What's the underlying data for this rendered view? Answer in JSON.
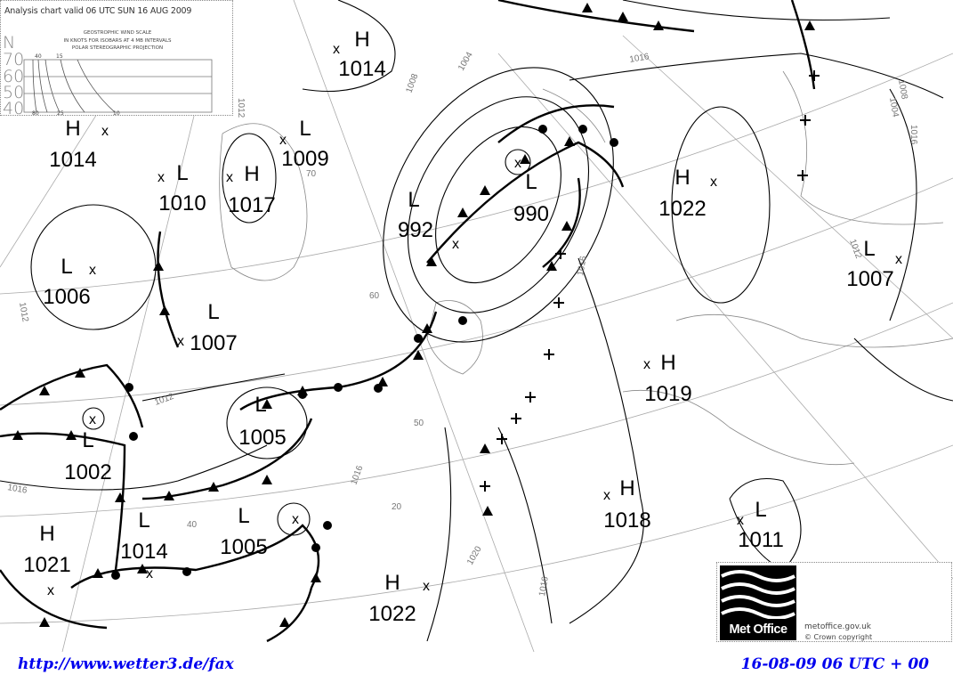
{
  "legend": {
    "title": "Analysis chart valid 06 UTC SUN 16 AUG 2009",
    "scale_title": "GEOSTROPHIC WIND SCALE",
    "scale_sub": "IN KNOTS FOR ISOBARS AT  4 MB INTERVALS",
    "projection": "POLAR STEREOGRAPHIC PROJECTION",
    "north": "N",
    "latitudes": [
      "70",
      "60",
      "50",
      "40"
    ],
    "top_speeds": [
      "40",
      "15"
    ],
    "bottom_speeds": [
      "80",
      "25",
      "10"
    ]
  },
  "pressure_centers": [
    {
      "type": "H",
      "value": "1014"
    },
    {
      "type": "H",
      "value": "1014"
    },
    {
      "type": "L",
      "value": "1010"
    },
    {
      "type": "H",
      "value": "1017"
    },
    {
      "type": "L",
      "value": "1009"
    },
    {
      "type": "L",
      "value": "992"
    },
    {
      "type": "L",
      "value": "990"
    },
    {
      "type": "H",
      "value": "1022"
    },
    {
      "type": "L",
      "value": "1007"
    },
    {
      "type": "L",
      "value": "1006"
    },
    {
      "type": "L",
      "value": "1007"
    },
    {
      "type": "H",
      "value": "1019"
    },
    {
      "type": "L",
      "value": "1005"
    },
    {
      "type": "L",
      "value": "1002"
    },
    {
      "type": "H",
      "value": "1018"
    },
    {
      "type": "L",
      "value": "1011"
    },
    {
      "type": "H",
      "value": "1021"
    },
    {
      "type": "L",
      "value": "1014"
    },
    {
      "type": "L",
      "value": "1005"
    },
    {
      "type": "H",
      "value": "1022"
    }
  ],
  "isobar_labels": [
    "1012",
    "1008",
    "1004",
    "1012",
    "1016",
    "1016",
    "1012",
    "1016",
    "1016",
    "1016",
    "1020",
    "1016",
    "1004",
    "1008",
    "1012"
  ],
  "grid_labels": [
    "60",
    "50",
    "40",
    "20",
    "70"
  ],
  "logo": {
    "name": "Met Office",
    "site": "metoffice.gov.uk",
    "copyright": "© Crown copyright"
  },
  "footer": {
    "url": "http://www.wetter3.de/fax",
    "valid": "16-08-09 06 UTC + 00"
  },
  "colors": {
    "footer_text": "#0000ee",
    "lines": "#000000",
    "grid": "#999999"
  }
}
